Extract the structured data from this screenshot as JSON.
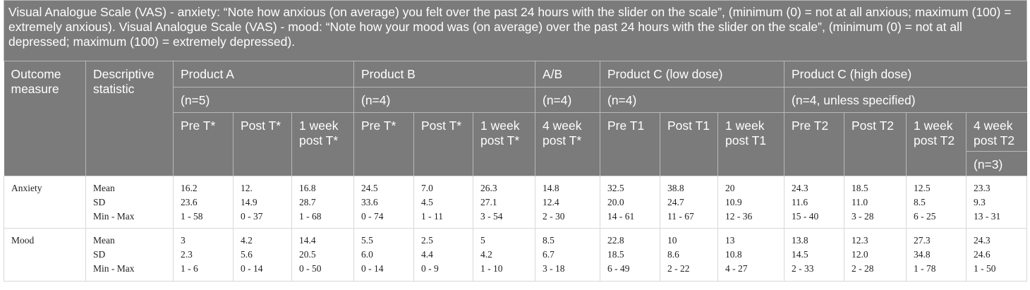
{
  "caption": "Visual Analogue Scale (VAS) - anxiety: “Note how anxious (on average) you felt over the past 24 hours with the slider on the scale”, (minimum (0) = not at all anxious; maximum (100) = extremely anxious). Visual Analogue Scale (VAS) - mood: “Note how your mood was (on average) over the past 24 hours with the slider on the scale”, (minimum (0) = not at all depressed; maximum (100) = extremely depressed).",
  "headers": {
    "outcome_measure": "Outcome measure",
    "descriptive_statistic": "Descriptive statistic",
    "groups": [
      {
        "name": "Product A",
        "n": "(n=5)"
      },
      {
        "name": "Product B",
        "n": "(n=4)"
      },
      {
        "name": "A/B",
        "n": "(n=4)"
      },
      {
        "name": "Product C (low dose)",
        "n": "(n=4)"
      },
      {
        "name": "Product C (high dose)",
        "n": "(n=4, unless specified)"
      }
    ],
    "timepoints": [
      "Pre T*",
      "Post T*",
      "1 week post T*",
      "Pre T*",
      "Post T*",
      "1 week post T*",
      "4 week post T*",
      "Pre T1",
      "Post T1",
      "1 week post T1",
      "Pre T2",
      "Post T2",
      "1 week post T2",
      "4 week post T2"
    ],
    "last_col_note": "(n=3)"
  },
  "rows": [
    {
      "measure": "Anxiety",
      "stats": [
        "Mean",
        "SD",
        "Min - Max"
      ],
      "cells": [
        [
          "16.2",
          "23.6",
          "1 - 58"
        ],
        [
          "12.",
          "14.9",
          "0 - 37"
        ],
        [
          "16.8",
          "28.7",
          "1 - 68"
        ],
        [
          "24.5",
          "33.6",
          "0 - 74"
        ],
        [
          "7.0",
          "4.5",
          "1 - 11"
        ],
        [
          "26.3",
          "27.1",
          "3 - 54"
        ],
        [
          "14.8",
          "12.4",
          "2 - 30"
        ],
        [
          "32.5",
          "20.0",
          "14 - 61"
        ],
        [
          "38.8",
          "24.7",
          "11 - 67"
        ],
        [
          "20",
          "10.9",
          "12 - 36"
        ],
        [
          "24.3",
          "11.6",
          "15 - 40"
        ],
        [
          "18.5",
          "11.0",
          "3 - 28"
        ],
        [
          "12.5",
          "8.5",
          "6 - 25"
        ],
        [
          "23.3",
          "9.3",
          "13 - 31"
        ]
      ]
    },
    {
      "measure": "Mood",
      "stats": [
        "Mean",
        "SD",
        "Min - Max"
      ],
      "cells": [
        [
          "3",
          "2.3",
          "1 - 6"
        ],
        [
          "4.2",
          "5.6",
          "0 - 14"
        ],
        [
          "14.4",
          "20.5",
          "0 - 50"
        ],
        [
          "5.5",
          "6.0",
          "0 - 14"
        ],
        [
          "2.5",
          "4.4",
          "0 - 9"
        ],
        [
          "5",
          "4.2",
          "1 - 10"
        ],
        [
          "8.5",
          "6.7",
          "3 - 18"
        ],
        [
          "22.8",
          "18.5",
          "6 - 49"
        ],
        [
          "10",
          "8.6",
          "2 - 22"
        ],
        [
          "13",
          "10.8",
          "4 - 27"
        ],
        [
          "13.8",
          "14.5",
          "2 - 33"
        ],
        [
          "12.3",
          "12.0",
          "2 - 28"
        ],
        [
          "27.3",
          "34.8",
          "1 - 78"
        ],
        [
          "24.3",
          "24.6",
          "1 - 50"
        ]
      ]
    }
  ]
}
